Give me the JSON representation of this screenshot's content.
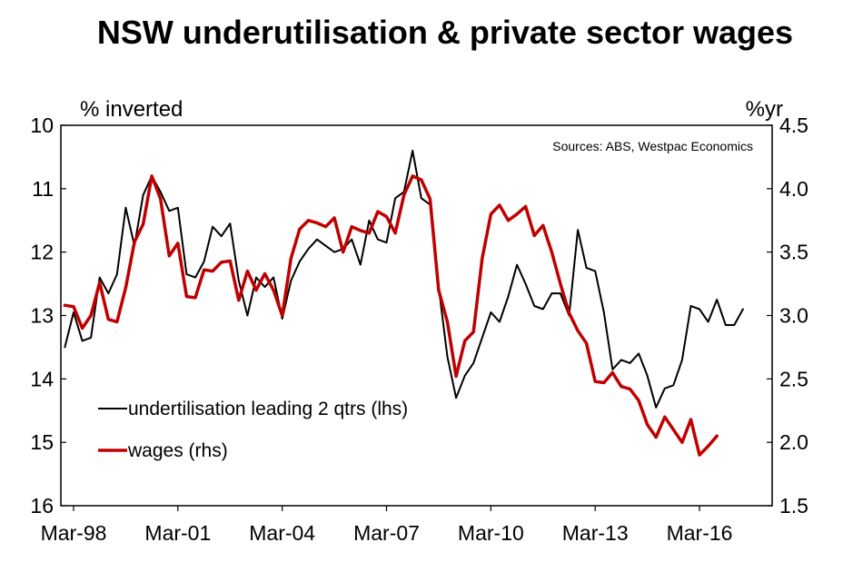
{
  "chart_data": {
    "type": "line",
    "title": "NSW underutilisation & private sector wages",
    "source_note": "Sources: ABS, Westpac Economics",
    "left_axis": {
      "label": "% inverted",
      "inverted": true,
      "range": [
        10,
        16
      ],
      "ticks": [
        "10",
        "11",
        "12",
        "13",
        "14",
        "15",
        "16"
      ],
      "tick_values": [
        10,
        11,
        12,
        13,
        14,
        15,
        16
      ]
    },
    "right_axis": {
      "label": "%yr",
      "range": [
        1.5,
        4.5
      ],
      "ticks": [
        "4.5",
        "4.0",
        "3.5",
        "3.0",
        "2.5",
        "2.0",
        "1.5"
      ],
      "tick_values": [
        4.5,
        4.0,
        3.5,
        3.0,
        2.5,
        2.0,
        1.5
      ]
    },
    "x_axis": {
      "start_quarter_index": 0,
      "end_quarter_index": 78,
      "tick_labels": [
        "Mar-98",
        "Mar-01",
        "Mar-04",
        "Mar-07",
        "Mar-10",
        "Mar-13",
        "Mar-16"
      ],
      "tick_quarter_indexes": [
        0,
        12,
        24,
        36,
        48,
        60,
        72
      ]
    },
    "series": [
      {
        "name": "undertilisation leading 2 qtrs (lhs)",
        "axis": "left",
        "color": "#000000",
        "points": [
          [
            -1,
            13.5
          ],
          [
            0,
            12.95
          ],
          [
            1,
            13.4
          ],
          [
            2,
            13.35
          ],
          [
            3,
            12.4
          ],
          [
            4,
            12.65
          ],
          [
            5,
            12.35
          ],
          [
            6,
            11.3
          ],
          [
            7,
            11.9
          ],
          [
            8,
            11.1
          ],
          [
            9,
            10.8
          ],
          [
            10,
            11.05
          ],
          [
            11,
            11.35
          ],
          [
            12,
            11.3
          ],
          [
            13,
            12.35
          ],
          [
            14,
            12.4
          ],
          [
            15,
            12.15
          ],
          [
            16,
            11.6
          ],
          [
            17,
            11.75
          ],
          [
            18,
            11.55
          ],
          [
            19,
            12.45
          ],
          [
            20,
            13.0
          ],
          [
            21,
            12.4
          ],
          [
            22,
            12.55
          ],
          [
            23,
            12.4
          ],
          [
            24,
            13.05
          ],
          [
            25,
            12.45
          ],
          [
            26,
            12.15
          ],
          [
            27,
            11.95
          ],
          [
            28,
            11.8
          ],
          [
            29,
            11.9
          ],
          [
            30,
            12.0
          ],
          [
            31,
            11.95
          ],
          [
            32,
            11.8
          ],
          [
            33,
            12.2
          ],
          [
            34,
            11.5
          ],
          [
            35,
            11.8
          ],
          [
            36,
            11.85
          ],
          [
            37,
            11.15
          ],
          [
            38,
            11.05
          ],
          [
            39,
            10.4
          ],
          [
            40,
            11.15
          ],
          [
            41,
            11.25
          ],
          [
            42,
            12.55
          ],
          [
            43,
            13.65
          ],
          [
            44,
            14.3
          ],
          [
            45,
            13.95
          ],
          [
            46,
            13.75
          ],
          [
            47,
            13.35
          ],
          [
            48,
            12.95
          ],
          [
            49,
            13.1
          ],
          [
            50,
            12.7
          ],
          [
            51,
            12.2
          ],
          [
            52,
            12.5
          ],
          [
            53,
            12.85
          ],
          [
            54,
            12.9
          ],
          [
            55,
            12.65
          ],
          [
            56,
            12.65
          ],
          [
            57,
            13.0
          ],
          [
            58,
            11.65
          ],
          [
            59,
            12.25
          ],
          [
            60,
            12.3
          ],
          [
            61,
            12.95
          ],
          [
            62,
            13.85
          ],
          [
            63,
            13.7
          ],
          [
            64,
            13.75
          ],
          [
            65,
            13.6
          ],
          [
            66,
            13.95
          ],
          [
            67,
            14.45
          ],
          [
            68,
            14.15
          ],
          [
            69,
            14.1
          ],
          [
            70,
            13.7
          ],
          [
            71,
            12.85
          ],
          [
            72,
            12.9
          ],
          [
            73,
            13.1
          ],
          [
            74,
            12.75
          ],
          [
            75,
            13.15
          ],
          [
            76,
            13.15
          ],
          [
            77,
            12.9
          ]
        ]
      },
      {
        "name": "wages (rhs)",
        "axis": "right",
        "color": "#c00000",
        "points": [
          [
            -1,
            3.08
          ],
          [
            0,
            3.07
          ],
          [
            1,
            2.9
          ],
          [
            2,
            3.0
          ],
          [
            3,
            3.26
          ],
          [
            4,
            2.97
          ],
          [
            5,
            2.95
          ],
          [
            6,
            3.22
          ],
          [
            7,
            3.58
          ],
          [
            8,
            3.72
          ],
          [
            9,
            4.1
          ],
          [
            10,
            3.92
          ],
          [
            11,
            3.47
          ],
          [
            12,
            3.57
          ],
          [
            13,
            3.15
          ],
          [
            14,
            3.14
          ],
          [
            15,
            3.36
          ],
          [
            16,
            3.35
          ],
          [
            17,
            3.42
          ],
          [
            18,
            3.43
          ],
          [
            19,
            3.12
          ],
          [
            20,
            3.35
          ],
          [
            21,
            3.2
          ],
          [
            22,
            3.33
          ],
          [
            23,
            3.2
          ],
          [
            24,
            3.0
          ],
          [
            25,
            3.45
          ],
          [
            26,
            3.68
          ],
          [
            27,
            3.75
          ],
          [
            28,
            3.73
          ],
          [
            29,
            3.7
          ],
          [
            30,
            3.77
          ],
          [
            31,
            3.5
          ],
          [
            32,
            3.7
          ],
          [
            33,
            3.67
          ],
          [
            34,
            3.65
          ],
          [
            35,
            3.82
          ],
          [
            36,
            3.78
          ],
          [
            37,
            3.65
          ],
          [
            38,
            3.95
          ],
          [
            39,
            4.1
          ],
          [
            40,
            4.07
          ],
          [
            41,
            3.92
          ],
          [
            42,
            3.2
          ],
          [
            43,
            2.95
          ],
          [
            44,
            2.52
          ],
          [
            45,
            2.8
          ],
          [
            46,
            2.87
          ],
          [
            47,
            3.45
          ],
          [
            48,
            3.8
          ],
          [
            49,
            3.87
          ],
          [
            50,
            3.75
          ],
          [
            51,
            3.8
          ],
          [
            52,
            3.86
          ],
          [
            53,
            3.63
          ],
          [
            54,
            3.71
          ],
          [
            55,
            3.5
          ],
          [
            56,
            3.25
          ],
          [
            57,
            3.02
          ],
          [
            58,
            2.88
          ],
          [
            59,
            2.78
          ],
          [
            60,
            2.48
          ],
          [
            61,
            2.47
          ],
          [
            62,
            2.55
          ],
          [
            63,
            2.44
          ],
          [
            64,
            2.42
          ],
          [
            65,
            2.33
          ],
          [
            66,
            2.14
          ],
          [
            67,
            2.04
          ],
          [
            68,
            2.2
          ],
          [
            69,
            2.1
          ],
          [
            70,
            2.0
          ],
          [
            71,
            2.18
          ],
          [
            72,
            1.9
          ],
          [
            73,
            1.97
          ],
          [
            74,
            2.05
          ]
        ]
      }
    ]
  }
}
